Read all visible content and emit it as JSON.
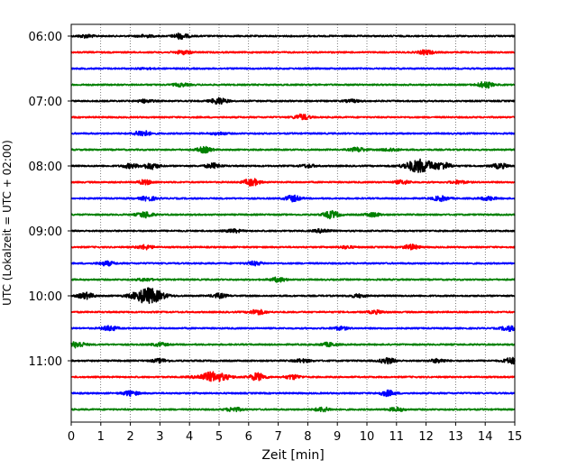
{
  "chart_data": {
    "type": "line",
    "title": "",
    "xlabel": "Zeit  [min]",
    "ylabel": "UTC (Lokalzeit = UTC + 02:00)",
    "xlim": [
      0,
      15
    ],
    "x_ticks": [
      "0",
      "1",
      "2",
      "3",
      "4",
      "5",
      "6",
      "7",
      "8",
      "9",
      "10",
      "11",
      "12",
      "13",
      "14",
      "15"
    ],
    "y_ticks": [
      "06:00",
      "07:00",
      "08:00",
      "09:00",
      "10:00",
      "11:00"
    ],
    "grid": "vertical-dotted",
    "trace_interval_minutes": 15,
    "trace_colors": [
      "#000000",
      "#ff0000",
      "#0000ff",
      "#008000"
    ],
    "series": [
      {
        "start": "06:00",
        "events": [
          [
            0.5,
            0.5
          ],
          [
            2.5,
            0.4
          ],
          [
            3.7,
            0.9
          ]
        ]
      },
      {
        "start": "06:15",
        "events": [
          [
            3.8,
            0.6
          ],
          [
            12.0,
            0.7
          ]
        ]
      },
      {
        "start": "06:30",
        "events": [
          [
            2.5,
            0.2
          ]
        ]
      },
      {
        "start": "06:45",
        "events": [
          [
            3.7,
            0.5
          ],
          [
            14.0,
            1.0
          ]
        ]
      },
      {
        "start": "07:00",
        "events": [
          [
            2.5,
            0.5
          ],
          [
            5.0,
            1.1
          ],
          [
            9.5,
            0.4
          ]
        ]
      },
      {
        "start": "07:15",
        "events": [
          [
            7.8,
            0.9
          ]
        ]
      },
      {
        "start": "07:30",
        "events": [
          [
            2.4,
            1.0
          ],
          [
            5.0,
            0.4
          ]
        ]
      },
      {
        "start": "07:45",
        "events": [
          [
            4.5,
            0.9
          ],
          [
            9.7,
            0.7
          ],
          [
            10.8,
            0.5
          ]
        ]
      },
      {
        "start": "08:00",
        "events": [
          [
            2.0,
            0.7
          ],
          [
            2.7,
            1.0
          ],
          [
            4.8,
            0.8
          ],
          [
            8.0,
            0.5
          ],
          [
            11.8,
            2.2
          ],
          [
            12.6,
            1.0
          ],
          [
            14.5,
            0.8
          ]
        ]
      },
      {
        "start": "08:15",
        "events": [
          [
            2.5,
            0.7
          ],
          [
            6.1,
            1.2
          ],
          [
            11.2,
            0.6
          ],
          [
            13.1,
            0.5
          ]
        ]
      },
      {
        "start": "08:30",
        "events": [
          [
            2.6,
            0.7
          ],
          [
            7.5,
            1.0
          ],
          [
            12.5,
            0.8
          ],
          [
            14.1,
            0.6
          ]
        ]
      },
      {
        "start": "08:45",
        "events": [
          [
            2.5,
            1.0
          ],
          [
            8.8,
            1.2
          ],
          [
            10.2,
            0.6
          ]
        ]
      },
      {
        "start": "09:00",
        "events": [
          [
            5.5,
            0.5
          ],
          [
            8.5,
            0.6
          ]
        ]
      },
      {
        "start": "09:15",
        "events": [
          [
            2.5,
            0.7
          ],
          [
            9.3,
            0.4
          ],
          [
            11.5,
            0.8
          ]
        ]
      },
      {
        "start": "09:30",
        "events": [
          [
            1.2,
            0.7
          ],
          [
            6.2,
            0.6
          ]
        ]
      },
      {
        "start": "09:45",
        "events": [
          [
            2.5,
            0.4
          ],
          [
            7.0,
            0.7
          ]
        ]
      },
      {
        "start": "10:00",
        "events": [
          [
            0.5,
            1.0
          ],
          [
            2.6,
            2.6
          ],
          [
            5.0,
            0.7
          ],
          [
            9.7,
            0.5
          ]
        ]
      },
      {
        "start": "10:15",
        "events": [
          [
            6.3,
            0.8
          ],
          [
            10.3,
            0.5
          ]
        ]
      },
      {
        "start": "10:30",
        "events": [
          [
            1.3,
            0.8
          ],
          [
            9.1,
            0.5
          ],
          [
            14.8,
            0.8
          ]
        ]
      },
      {
        "start": "10:45",
        "events": [
          [
            0.2,
            1.0
          ],
          [
            3.0,
            0.5
          ],
          [
            8.7,
            0.6
          ]
        ]
      },
      {
        "start": "11:00",
        "events": [
          [
            3.0,
            0.6
          ],
          [
            7.8,
            0.5
          ],
          [
            10.7,
            0.9
          ],
          [
            12.4,
            0.6
          ],
          [
            14.9,
            1.0
          ]
        ]
      },
      {
        "start": "11:15",
        "events": [
          [
            4.8,
            1.6
          ],
          [
            6.3,
            1.3
          ],
          [
            7.5,
            0.7
          ]
        ]
      },
      {
        "start": "11:30",
        "events": [
          [
            2.0,
            0.8
          ],
          [
            10.7,
            0.9
          ]
        ]
      },
      {
        "start": "11:45",
        "events": [
          [
            5.5,
            0.7
          ],
          [
            8.5,
            0.7
          ],
          [
            11.0,
            0.6
          ]
        ]
      }
    ]
  }
}
